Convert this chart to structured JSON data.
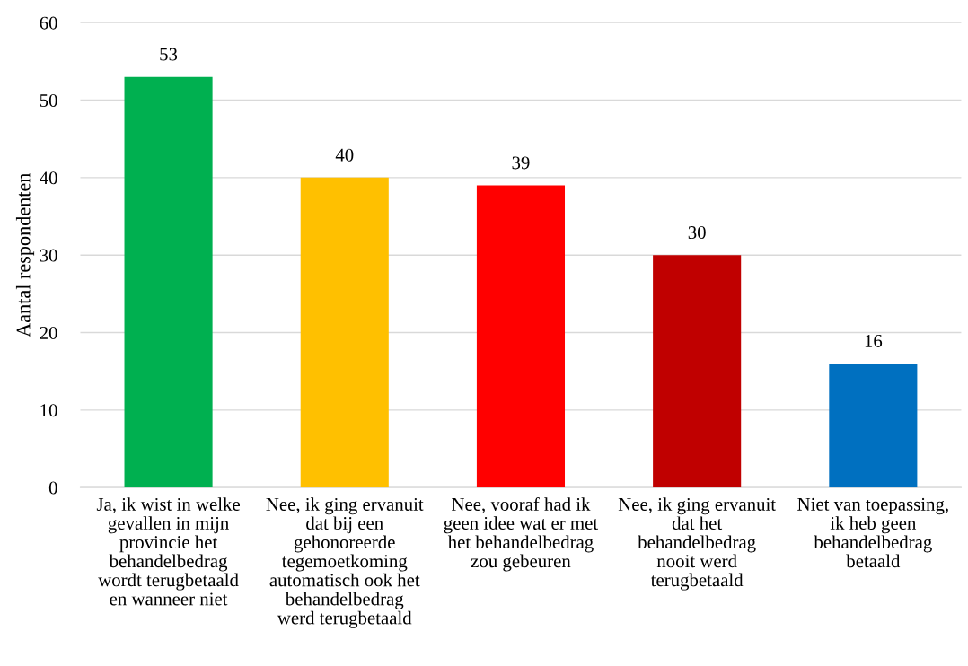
{
  "chart_data": {
    "type": "bar",
    "ylabel": "Aantal respondenten",
    "categories": [
      "Ja, ik wist in welke\ngevallen in mijn\nprovincie het\nbehandelbedrag\nwordt terugbetaald\nen wanneer niet",
      "Nee, ik ging ervanuit\ndat bij een\ngehonoreerde\ntegemoetkoming\nautomatisch ook het\nbehandelbedrag\nwerd terugbetaald",
      "Nee, vooraf had ik\ngeen idee wat er met\nhet behandelbedrag\nzou gebeuren",
      "Nee, ik ging ervanuit\ndat het\nbehandelbedrag\nnooit werd\nterugbetaald",
      "Niet van toepassing,\nik heb geen\nbehandelbedrag\nbetaald"
    ],
    "values": [
      53,
      40,
      39,
      30,
      16
    ],
    "colors": [
      "#00b050",
      "#ffc000",
      "#ff0000",
      "#c00000",
      "#0070c0"
    ],
    "ylim": [
      0,
      60
    ],
    "yticks": [
      0,
      10,
      20,
      30,
      40,
      50,
      60
    ],
    "grid": "y",
    "data_labels": true
  }
}
